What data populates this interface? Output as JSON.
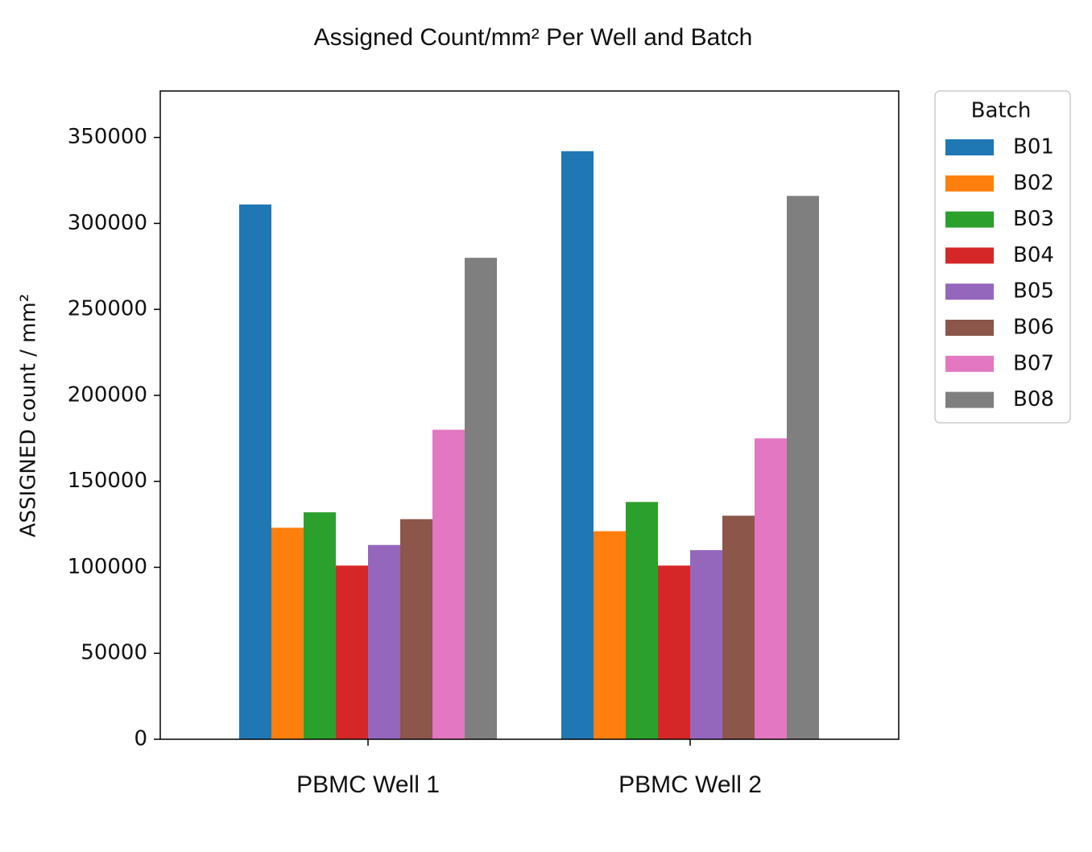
{
  "chart_data": {
    "type": "bar",
    "title": "Assigned Count/mm² Per Well and Batch",
    "y_label": "ASSIGNED count / mm²",
    "categories": [
      "PBMC Well 1",
      "PBMC Well 2"
    ],
    "legend_title": "Batch",
    "legend_position": "outside-upper-right",
    "series": [
      {
        "name": "B01",
        "color": "#1f77b4",
        "values": [
          311000,
          342000
        ]
      },
      {
        "name": "B02",
        "color": "#ff7f0e",
        "values": [
          123000,
          121000
        ]
      },
      {
        "name": "B03",
        "color": "#2ca02c",
        "values": [
          132000,
          138000
        ]
      },
      {
        "name": "B04",
        "color": "#d62728",
        "values": [
          101000,
          101000
        ]
      },
      {
        "name": "B05",
        "color": "#9467bd",
        "values": [
          113000,
          110000
        ]
      },
      {
        "name": "B06",
        "color": "#8c564b",
        "values": [
          128000,
          130000
        ]
      },
      {
        "name": "B07",
        "color": "#e377c2",
        "values": [
          180000,
          175000
        ]
      },
      {
        "name": "B08",
        "color": "#7f7f7f",
        "values": [
          280000,
          316000
        ]
      }
    ],
    "ylim": [
      0,
      377000
    ],
    "yticks": [
      0,
      50000,
      100000,
      150000,
      200000,
      250000,
      300000,
      350000
    ],
    "grid": false
  }
}
